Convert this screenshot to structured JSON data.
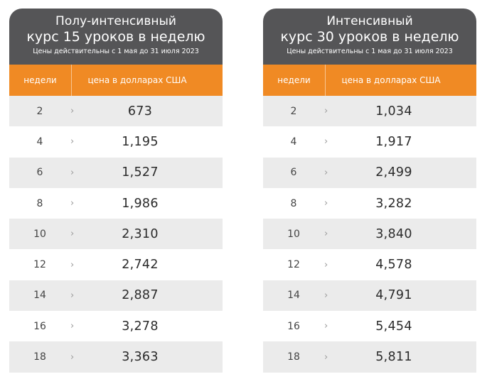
{
  "tables": [
    {
      "title_line1": "Полу-интенсивный",
      "title_line2": "курс 15 уроков в неделю",
      "validity": "Цены действительны с 1 мая до 31 июля 2023",
      "col_weeks": "недели",
      "col_price": "цена в долларах США",
      "rows": [
        {
          "weeks": "2",
          "price": "673"
        },
        {
          "weeks": "4",
          "price": "1,195"
        },
        {
          "weeks": "6",
          "price": "1,527"
        },
        {
          "weeks": "8",
          "price": "1,986"
        },
        {
          "weeks": "10",
          "price": "2,310"
        },
        {
          "weeks": "12",
          "price": "2,742"
        },
        {
          "weeks": "14",
          "price": "2,887"
        },
        {
          "weeks": "16",
          "price": "3,278"
        },
        {
          "weeks": "18",
          "price": "3,363"
        }
      ]
    },
    {
      "title_line1": "Интенсивный",
      "title_line2": "курс 30 уроков в неделю",
      "validity": "Цены действительны с 1 мая до 31 июля 2023",
      "col_weeks": "недели",
      "col_price": "цена в долларах США",
      "rows": [
        {
          "weeks": "2",
          "price": "1,034"
        },
        {
          "weeks": "4",
          "price": "1,917"
        },
        {
          "weeks": "6",
          "price": "2,499"
        },
        {
          "weeks": "8",
          "price": "3,282"
        },
        {
          "weeks": "10",
          "price": "3,840"
        },
        {
          "weeks": "12",
          "price": "4,578"
        },
        {
          "weeks": "14",
          "price": "4,791"
        },
        {
          "weeks": "16",
          "price": "5,454"
        },
        {
          "weeks": "18",
          "price": "5,811"
        }
      ]
    }
  ],
  "colors": {
    "header_bg": "#555557",
    "accent": "#f08a24",
    "row_alt": "#ebebeb"
  },
  "icons": {
    "row_marker": "chevron-right-icon"
  }
}
